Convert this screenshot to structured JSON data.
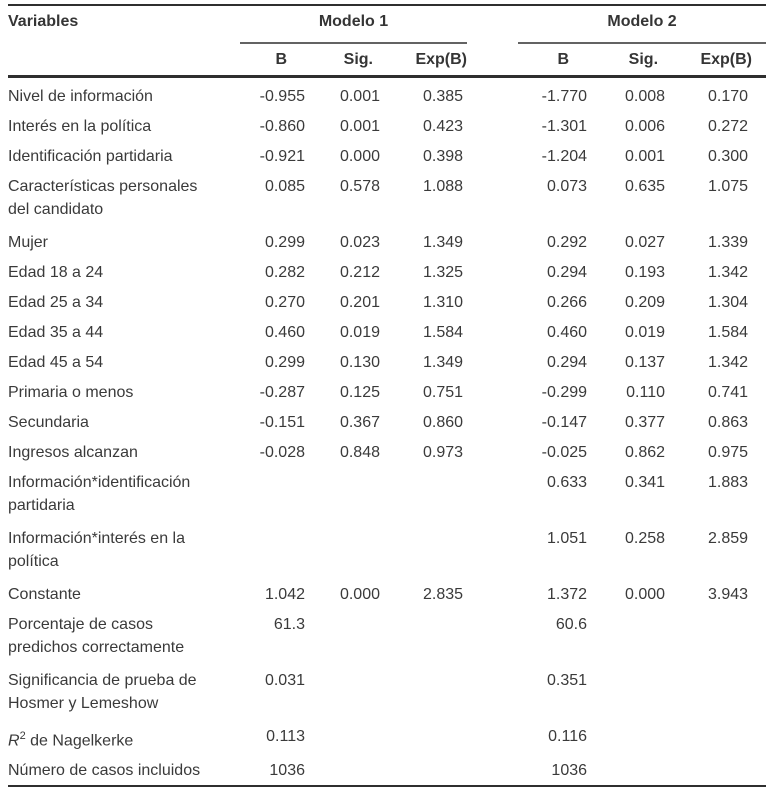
{
  "page": {
    "background": "#ffffff",
    "text_color": "#3a3a3a",
    "rule_color": "#2f2f2f"
  },
  "table": {
    "header": {
      "variables_label": "Variables",
      "model1": {
        "title": "Modelo 1",
        "columns": [
          "B",
          "Sig.",
          "Exp(B)"
        ]
      },
      "model2": {
        "title": "Modelo 2",
        "columns": [
          "B",
          "Sig.",
          "Exp(B)"
        ]
      }
    },
    "rows": [
      {
        "label": "Nivel de información",
        "m1": [
          "-0.955",
          "0.001",
          "0.385"
        ],
        "m2": [
          "-1.770",
          "0.008",
          "0.170"
        ]
      },
      {
        "label": "Interés en la política",
        "m1": [
          "-0.860",
          "0.001",
          "0.423"
        ],
        "m2": [
          "-1.301",
          "0.006",
          "0.272"
        ]
      },
      {
        "label": "Identificación partidaria",
        "m1": [
          "-0.921",
          "0.000",
          "0.398"
        ],
        "m2": [
          "-1.204",
          "0.001",
          "0.300"
        ]
      },
      {
        "label": "Características personales\ndel candidato",
        "m1": [
          "0.085",
          "0.578",
          "1.088"
        ],
        "m2": [
          "0.073",
          "0.635",
          "1.075"
        ]
      },
      {
        "label": "Mujer",
        "m1": [
          "0.299",
          "0.023",
          "1.349"
        ],
        "m2": [
          "0.292",
          "0.027",
          "1.339"
        ]
      },
      {
        "label": "Edad 18 a 24",
        "m1": [
          "0.282",
          "0.212",
          "1.325"
        ],
        "m2": [
          "0.294",
          "0.193",
          "1.342"
        ]
      },
      {
        "label": "Edad 25 a 34",
        "m1": [
          "0.270",
          "0.201",
          "1.310"
        ],
        "m2": [
          "0.266",
          "0.209",
          "1.304"
        ]
      },
      {
        "label": "Edad 35 a 44",
        "m1": [
          "0.460",
          "0.019",
          "1.584"
        ],
        "m2": [
          "0.460",
          "0.019",
          "1.584"
        ]
      },
      {
        "label": "Edad 45 a 54",
        "m1": [
          "0.299",
          "0.130",
          "1.349"
        ],
        "m2": [
          "0.294",
          "0.137",
          "1.342"
        ]
      },
      {
        "label": "Primaria o menos",
        "m1": [
          "-0.287",
          "0.125",
          "0.751"
        ],
        "m2": [
          "-0.299",
          "0.110",
          "0.741"
        ]
      },
      {
        "label": "Secundaria",
        "m1": [
          "-0.151",
          "0.367",
          "0.860"
        ],
        "m2": [
          "-0.147",
          "0.377",
          "0.863"
        ]
      },
      {
        "label": "Ingresos alcanzan",
        "m1": [
          "-0.028",
          "0.848",
          "0.973"
        ],
        "m2": [
          "-0.025",
          "0.862",
          "0.975"
        ]
      },
      {
        "label": "Información*identificación\npartidaria",
        "m1": [
          "",
          "",
          ""
        ],
        "m2": [
          "0.633",
          "0.341",
          "1.883"
        ]
      },
      {
        "label": "Información*interés en la\npolítica",
        "m1": [
          "",
          "",
          ""
        ],
        "m2": [
          "1.051",
          "0.258",
          "2.859"
        ]
      },
      {
        "label": "Constante",
        "m1": [
          "1.042",
          "0.000",
          "2.835"
        ],
        "m2": [
          "1.372",
          "0.000",
          "3.943"
        ]
      },
      {
        "label": "Porcentaje de casos\npredichos correctamente",
        "m1": [
          "61.3",
          "",
          ""
        ],
        "m2": [
          "60.6",
          "",
          ""
        ]
      },
      {
        "label": "Significancia de prueba de\nHosmer y Lemeshow",
        "m1": [
          "0.031",
          "",
          ""
        ],
        "m2": [
          "0.351",
          "",
          ""
        ]
      },
      {
        "label": "R² de Nagelkerke",
        "label_parts": [
          {
            "text": "R",
            "italic": true
          },
          {
            "text": "2",
            "sup": true
          },
          {
            "text": " de Nagelkerke"
          }
        ],
        "m1": [
          "0.113",
          "",
          ""
        ],
        "m2": [
          "0.116",
          "",
          ""
        ]
      },
      {
        "label": "Número de casos incluidos",
        "m1": [
          "1036",
          "",
          ""
        ],
        "m2": [
          "1036",
          "",
          ""
        ]
      }
    ]
  }
}
